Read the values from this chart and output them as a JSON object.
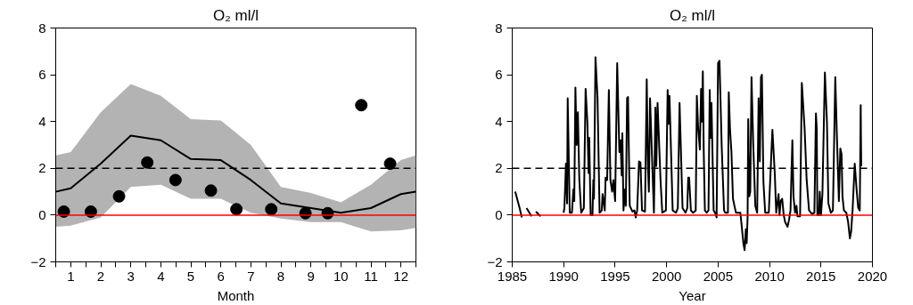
{
  "chart_data": [
    {
      "type": "line",
      "title": "O₂ ml/l",
      "xlabel": "Month",
      "xlim": [
        0.5,
        12.5
      ],
      "ylim": [
        -2,
        8
      ],
      "xticks": [
        {
          "value": 0.5,
          "label": null
        },
        {
          "value": 1,
          "label": "1"
        },
        {
          "value": 1.5,
          "label": null
        },
        {
          "value": 2,
          "label": "2"
        },
        {
          "value": 2.5,
          "label": null
        },
        {
          "value": 3,
          "label": "3"
        },
        {
          "value": 3.5,
          "label": null
        },
        {
          "value": 4,
          "label": "4"
        },
        {
          "value": 4.5,
          "label": null
        },
        {
          "value": 5,
          "label": "5"
        },
        {
          "value": 5.5,
          "label": null
        },
        {
          "value": 6,
          "label": "6"
        },
        {
          "value": 6.5,
          "label": null
        },
        {
          "value": 7,
          "label": "7"
        },
        {
          "value": 7.5,
          "label": null
        },
        {
          "value": 8,
          "label": "8"
        },
        {
          "value": 8.5,
          "label": null
        },
        {
          "value": 9,
          "label": "9"
        },
        {
          "value": 9.5,
          "label": null
        },
        {
          "value": 10,
          "label": "10"
        },
        {
          "value": 10.5,
          "label": null
        },
        {
          "value": 11,
          "label": "11"
        },
        {
          "value": 11.5,
          "label": null
        },
        {
          "value": 12,
          "label": "12"
        },
        {
          "value": 12.5,
          "label": null
        }
      ],
      "yticks": [
        {
          "value": -2,
          "label": "−2"
        },
        0,
        2,
        4,
        6,
        8
      ],
      "series": [
        {
          "color": "#000000",
          "x": [
            0.5,
            1,
            2,
            3,
            4,
            5,
            6,
            7,
            8,
            9,
            10,
            11,
            12,
            12.5
          ],
          "values": [
            1.0,
            1.15,
            2.2,
            3.4,
            3.2,
            2.4,
            2.35,
            1.5,
            0.5,
            0.3,
            0.1,
            0.3,
            0.9,
            1.0
          ],
          "lower": [
            -0.5,
            -0.45,
            -0.1,
            1.2,
            1.3,
            0.7,
            0.7,
            0.1,
            -0.15,
            -0.3,
            -0.3,
            -0.7,
            -0.65,
            -0.55
          ],
          "upper": [
            2.55,
            2.7,
            4.4,
            5.6,
            5.1,
            4.1,
            4.05,
            3.0,
            1.2,
            0.95,
            0.55,
            1.3,
            2.35,
            2.55
          ]
        },
        {
          "type": "scatter",
          "marker": "circle",
          "color": "#000000",
          "x": [
            0.77,
            1.67,
            2.61,
            3.55,
            4.49,
            5.67,
            6.52,
            7.68,
            8.82,
            9.56,
            10.68,
            11.64
          ],
          "values": [
            0.15,
            0.15,
            0.8,
            2.25,
            1.5,
            1.05,
            0.25,
            0.25,
            0.08,
            0.08,
            4.7,
            2.2
          ]
        }
      ],
      "ref_lines": [
        {
          "axis": "y",
          "value": 2,
          "color": "#000000",
          "line_style": "dashed"
        },
        {
          "axis": "y",
          "value": 0,
          "color": "#ff0000",
          "line_style": "solid"
        }
      ],
      "grid": false
    },
    {
      "type": "line",
      "title": "O₂ ml/l",
      "xlabel": "Year",
      "xlim": [
        1985,
        2020
      ],
      "ylim": [
        -2,
        8
      ],
      "xticks": [
        1985,
        1990,
        1995,
        2000,
        2005,
        2010,
        2015,
        2020
      ],
      "yticks": [
        {
          "value": -2,
          "label": "−2"
        },
        0,
        2,
        4,
        6,
        8
      ],
      "series": [
        {
          "color": "#000000",
          "x": [
            1985.29,
            1985.72,
            1985.93,
            1986.1,
            1986.39,
            1986.88,
            1987.1,
            1987.3,
            1987.75,
            1988.5,
            1989.99,
            1990.07,
            1990.22,
            1990.33,
            1990.39,
            1990.59,
            1990.8,
            1990.94,
            1991.03,
            1991.14,
            1991.26,
            1991.38,
            1991.52,
            1991.7,
            1991.96,
            1992.13,
            1992.3,
            1992.42,
            1992.48,
            1992.62,
            1992.8,
            1992.88,
            1992.94,
            1993.09,
            1993.29,
            1993.49,
            1993.7,
            1993.78,
            1993.99,
            1994.07,
            1994.22,
            1994.39,
            1994.54,
            1994.71,
            1994.83,
            1995.0,
            1995.2,
            1995.41,
            1995.52,
            1995.64,
            1995.7,
            1995.81,
            1995.96,
            1996.04,
            1996.16,
            1996.25,
            1996.42,
            1996.68,
            1996.88,
            1997.0,
            1997.14,
            1997.32,
            1997.46,
            1997.61,
            1997.9,
            1998.07,
            1998.19,
            1998.28,
            1998.39,
            1998.77,
            1998.91,
            1999.0,
            1999.12,
            1999.41,
            1999.58,
            1999.93,
            2000.1,
            2000.19,
            2000.28,
            2000.59,
            2000.91,
            2001.09,
            2001.26,
            2001.55,
            2001.84,
            2002.01,
            2002.1,
            2002.19,
            2002.36,
            2002.57,
            2002.83,
            2002.94,
            2003.06,
            2003.23,
            2003.35,
            2003.43,
            2003.52,
            2003.61,
            2003.72,
            2003.9,
            2004.07,
            2004.19,
            2004.28,
            2004.36,
            2004.57,
            2004.71,
            2004.86,
            2005.0,
            2005.14,
            2005.35,
            2005.58,
            2005.7,
            2005.96,
            2006.04,
            2006.16,
            2006.3,
            2006.45,
            2006.59,
            2006.74,
            2007.17,
            2007.26,
            2007.46,
            2007.58,
            2007.7,
            2007.78,
            2007.87,
            2007.93,
            2008.04,
            2008.13,
            2008.25,
            2008.42,
            2008.62,
            2008.8,
            2008.94,
            2009.06,
            2009.17,
            2009.26,
            2009.41,
            2009.58,
            2009.78,
            2009.93,
            2010.28,
            2010.51,
            2010.65,
            2010.88,
            2010.97,
            2011.09,
            2011.23,
            2011.38,
            2011.52,
            2011.75,
            2011.9,
            2012.04,
            2012.22,
            2012.33,
            2012.48,
            2012.62,
            2012.71,
            2012.97,
            2013.14,
            2013.41,
            2013.61,
            2013.84,
            2014.13,
            2014.36,
            2014.51,
            2014.59,
            2014.65,
            2014.8,
            2014.88,
            2015.0,
            2015.14,
            2015.38,
            2015.58,
            2015.72,
            2015.96,
            2016.16,
            2016.39,
            2016.54,
            2016.74,
            2016.88,
            2017.0,
            2017.09,
            2017.23,
            2017.46,
            2017.64,
            2017.81,
            2017.93,
            2018.07,
            2018.28,
            2018.48,
            2018.62,
            2018.77,
            2018.86,
            2018.91
          ],
          "values": [
            1.0,
            0.3,
            -0.1,
            null,
            0.3,
            -0.05,
            null,
            0.15,
            -0.05,
            null,
            0.1,
            0.3,
            2.2,
            0.5,
            5.0,
            0.1,
            0.1,
            1.1,
            0.6,
            5.45,
            3.0,
            4.4,
            1.5,
            0.1,
            0.3,
            5.4,
            4.0,
            1.8,
            3.3,
            0.0,
            0.0,
            1.5,
            0.7,
            6.75,
            5.0,
            0.1,
            0.2,
            0.9,
            0.2,
            1.6,
            1.5,
            5.35,
            1.5,
            1.0,
            1.5,
            0.6,
            6.5,
            2.7,
            3.2,
            1.7,
            3.5,
            0.2,
            1.1,
            0.4,
            5.0,
            5.05,
            0.4,
            0.15,
            0.2,
            -0.1,
            0.2,
            2.3,
            2.25,
            0.2,
            0.15,
            5.8,
            2.0,
            1.0,
            5.0,
            0.1,
            4.6,
            2.1,
            4.8,
            1.5,
            0.1,
            0.2,
            5.35,
            3.9,
            5.1,
            0.2,
            0.1,
            0.3,
            4.8,
            0.3,
            0.1,
            0.3,
            1.6,
            1.6,
            0.2,
            0.1,
            0.2,
            5.1,
            3.8,
            2.8,
            5.4,
            4.0,
            6.15,
            2.7,
            0.2,
            0.1,
            0.2,
            5.35,
            3.3,
            4.8,
            0.2,
            0.1,
            -0.1,
            6.5,
            6.6,
            3.0,
            0.2,
            0.1,
            0.1,
            5.25,
            3.7,
            2.7,
            0.7,
            0.4,
            0.1,
            0.1,
            -0.3,
            -1.2,
            -1.5,
            -0.6,
            -1.2,
            -0.1,
            4.1,
            0.8,
            1.0,
            5.9,
            3.0,
            0.4,
            0.1,
            5.0,
            2.3,
            5.9,
            6.0,
            1.4,
            0.1,
            0.1,
            0.1,
            3.65,
            1.8,
            0.1,
            0.9,
            0.0,
            0.6,
            0.7,
            0.0,
            -0.3,
            -0.5,
            -0.2,
            0.2,
            3.2,
            0.8,
            0.1,
            0.4,
            -0.05,
            -0.05,
            5.65,
            3.7,
            1.5,
            0.2,
            0.05,
            0.1,
            4.35,
            3.7,
            0.0,
            0.0,
            1.0,
            0.0,
            0.9,
            6.1,
            4.0,
            0.5,
            0.1,
            0.2,
            5.9,
            3.5,
            0.6,
            2.85,
            2.6,
            0.8,
            0.2,
            0.1,
            -0.3,
            -1.0,
            -0.7,
            0.2,
            2.2,
            1.0,
            0.3,
            0.2,
            4.7,
            2.1
          ]
        }
      ],
      "ref_lines": [
        {
          "axis": "y",
          "value": 2,
          "color": "#000000",
          "line_style": "dashed"
        },
        {
          "axis": "y",
          "value": 0,
          "color": "#ff0000",
          "line_style": "solid"
        }
      ],
      "grid": false
    }
  ]
}
